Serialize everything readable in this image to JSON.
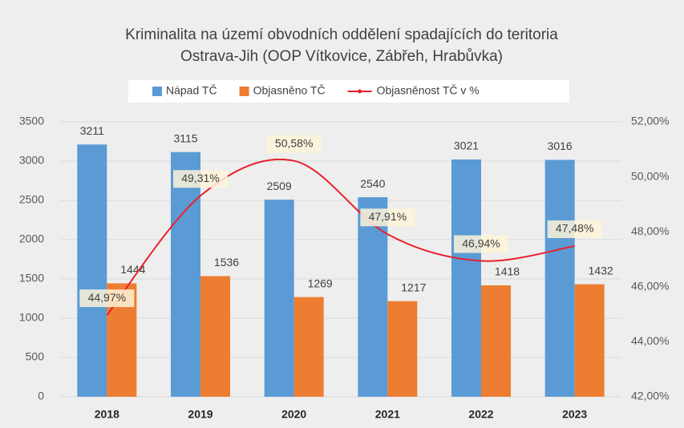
{
  "chart_data": {
    "type": "bar",
    "title": [
      "Kriminalita na území obvodních oddělení spadajících do teritoria",
      "Ostrava-Jih (OOP Vítkovice, Zábřeh, Hrabůvka)"
    ],
    "categories": [
      "2018",
      "2019",
      "2020",
      "2021",
      "2022",
      "2023"
    ],
    "series": [
      {
        "name": "Nápad TČ",
        "color": "#5b9bd5",
        "values": [
          3211,
          3115,
          2509,
          2540,
          3021,
          3016
        ]
      },
      {
        "name": "Objasněno TČ",
        "color": "#ed7d31",
        "values": [
          1444,
          1536,
          1269,
          1217,
          1418,
          1432
        ]
      },
      {
        "name": "Objasněnost TČ v %",
        "type": "line",
        "axis": "y2",
        "color": "#e8202a",
        "values": [
          44.97,
          49.31,
          50.58,
          47.91,
          46.94,
          47.48
        ],
        "value_labels": [
          "44,97%",
          "49,31%",
          "50,58%",
          "47,91%",
          "46,94%",
          "47,48%"
        ]
      }
    ],
    "ylim": [
      0,
      3500
    ],
    "yticks": [
      0,
      500,
      1000,
      1500,
      2000,
      2500,
      3000,
      3500
    ],
    "y2lim": [
      42,
      52
    ],
    "y2ticks": [
      {
        "value": 42,
        "label": "42,00%"
      },
      {
        "value": 44,
        "label": "44,00%"
      },
      {
        "value": 46,
        "label": "46,00%"
      },
      {
        "value": 48,
        "label": "48,00%"
      },
      {
        "value": 50,
        "label": "50,00%"
      },
      {
        "value": 52,
        "label": "52,00%"
      }
    ],
    "grid": true,
    "legend": "top"
  }
}
